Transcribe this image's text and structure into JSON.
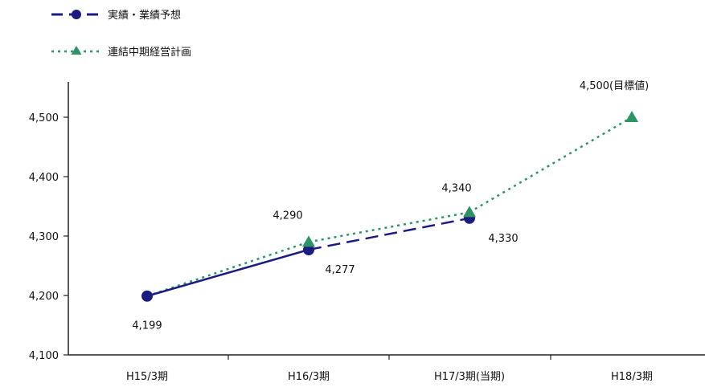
{
  "chart_data": {
    "type": "line",
    "categories": [
      "H15/3期",
      "H16/3期",
      "H17/3期(当期)",
      "H18/3期"
    ],
    "ylim": [
      4100,
      4500
    ],
    "yticks": [
      4100,
      4200,
      4300,
      4400,
      4500
    ],
    "ytick_labels": [
      "4,100",
      "4,200",
      "4,300",
      "4,400",
      "4,500"
    ],
    "grid": false,
    "legend_position": "top-left",
    "series": [
      {
        "name": "実績・業績予想",
        "values": [
          4199,
          4277,
          4330,
          null
        ],
        "labels": [
          "4,199",
          "4,277",
          "4,330",
          ""
        ],
        "color": "#1c1c80",
        "marker": "circle",
        "line_style": "solid then dashed (forecast)"
      },
      {
        "name": "連結中期経営計画",
        "values": [
          4199,
          4290,
          4340,
          4500
        ],
        "labels": [
          "",
          "4,290",
          "4,340",
          "4,500(目標値)"
        ],
        "color": "#2e9466",
        "marker": "triangle",
        "line_style": "dotted"
      }
    ]
  }
}
